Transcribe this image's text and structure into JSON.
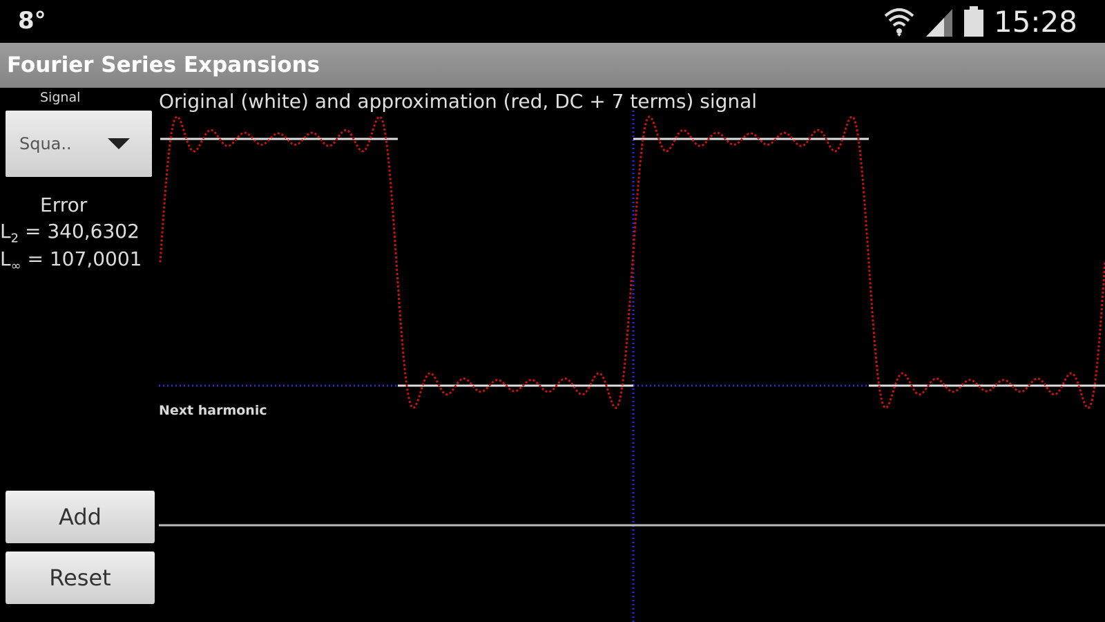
{
  "status": {
    "left": "8°",
    "time": "15:28"
  },
  "app": {
    "title": "Fourier Series Expansions"
  },
  "signal": {
    "label": "Signal",
    "selected": "Squa.."
  },
  "error": {
    "title": "Error",
    "l2_label": "L",
    "l2_sub": "2",
    "l2_value": " = 340,6302",
    "linf_label": "L",
    "linf_sub": "∞",
    "linf_value": " = 107,0001"
  },
  "plot": {
    "caption": "Original (white) and approximation (red, DC + 7 terms) signal",
    "next_label": "Next harmonic"
  },
  "buttons": {
    "add": "Add",
    "reset": "Reset"
  },
  "colors": {
    "original": "#e0e0e0",
    "approximation": "#cc1111",
    "axis": "#2a2ad8"
  }
}
